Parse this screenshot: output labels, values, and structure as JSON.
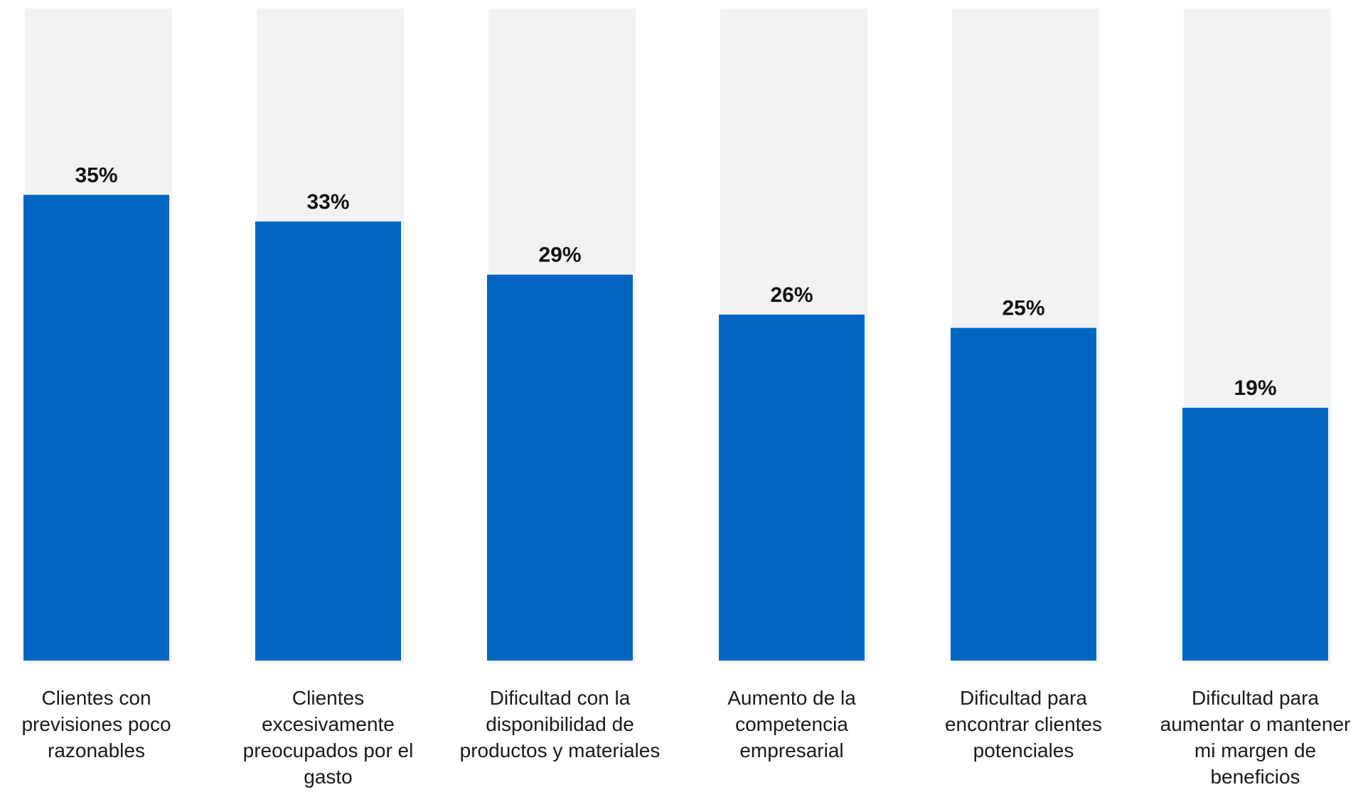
{
  "chart_data": {
    "type": "bar",
    "categories": [
      [
        "Clientes con",
        "previsiones poco",
        "razonables"
      ],
      [
        "Clientes",
        "excesivamente",
        "preocupados por el",
        "gasto"
      ],
      [
        "Dificultad con la",
        "disponibilidad de",
        "productos y materiales"
      ],
      [
        "Aumento de la",
        "competencia",
        "empresarial"
      ],
      [
        "Dificultad para",
        "encontrar clientes",
        "potenciales"
      ],
      [
        "Dificultad para",
        "aumentar o mantener",
        "mi margen de",
        "beneficios"
      ]
    ],
    "values": [
      35,
      33,
      29,
      26,
      25,
      19
    ],
    "value_labels": [
      "35%",
      "33%",
      "29%",
      "26%",
      "25%",
      "19%"
    ],
    "ylim": [
      0,
      49
    ],
    "grid": false,
    "legend": "none",
    "colors": {
      "bar": "#0066C2",
      "track": "#F2F2F2",
      "text": "#111111"
    }
  }
}
